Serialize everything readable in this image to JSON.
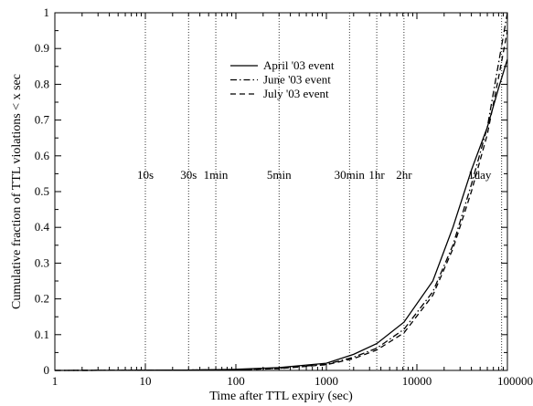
{
  "chart_data": {
    "type": "line",
    "title": "",
    "xlabel": "Time after TTL expiry (sec)",
    "ylabel": "Cumulative fraction of TTL violations < x sec",
    "xscale": "log",
    "xlim": [
      1,
      100000
    ],
    "ylim": [
      0,
      1
    ],
    "grid": false,
    "legend_position": "top-center",
    "x_ticks": [
      {
        "value": 1,
        "label": "1"
      },
      {
        "value": 10,
        "label": "10"
      },
      {
        "value": 100,
        "label": "100"
      },
      {
        "value": 1000,
        "label": "1000"
      },
      {
        "value": 10000,
        "label": "10000"
      },
      {
        "value": 100000,
        "label": "100000"
      }
    ],
    "y_ticks": [
      {
        "value": 0,
        "label": "0"
      },
      {
        "value": 0.1,
        "label": "0.1"
      },
      {
        "value": 0.2,
        "label": "0.2"
      },
      {
        "value": 0.3,
        "label": "0.3"
      },
      {
        "value": 0.4,
        "label": "0.4"
      },
      {
        "value": 0.5,
        "label": "0.5"
      },
      {
        "value": 0.6,
        "label": "0.6"
      },
      {
        "value": 0.7,
        "label": "0.7"
      },
      {
        "value": 0.8,
        "label": "0.8"
      },
      {
        "value": 0.9,
        "label": "0.9"
      },
      {
        "value": 1,
        "label": "1"
      }
    ],
    "markers": [
      {
        "x": 10,
        "label": "10s"
      },
      {
        "x": 30,
        "label": "30s"
      },
      {
        "x": 60,
        "label": "1min"
      },
      {
        "x": 300,
        "label": "5min"
      },
      {
        "x": 1800,
        "label": "30min"
      },
      {
        "x": 3600,
        "label": "1hr"
      },
      {
        "x": 7200,
        "label": "2hr"
      },
      {
        "x": 86400,
        "label": "1day"
      }
    ],
    "series": [
      {
        "name": "April '03 event",
        "style": "solid",
        "points": [
          [
            1,
            0
          ],
          [
            10,
            0.0005
          ],
          [
            30,
            0.001
          ],
          [
            100,
            0.003
          ],
          [
            300,
            0.008
          ],
          [
            1000,
            0.02
          ],
          [
            2000,
            0.045
          ],
          [
            3600,
            0.075
          ],
          [
            7200,
            0.135
          ],
          [
            15000,
            0.25
          ],
          [
            25000,
            0.4
          ],
          [
            40000,
            0.56
          ],
          [
            60000,
            0.68
          ],
          [
            80000,
            0.79
          ],
          [
            100000,
            0.87
          ]
        ]
      },
      {
        "name": "June '03 event",
        "style": "dash-dot",
        "points": [
          [
            1,
            0
          ],
          [
            10,
            0.0005
          ],
          [
            30,
            0.001
          ],
          [
            100,
            0.002
          ],
          [
            300,
            0.006
          ],
          [
            1000,
            0.017
          ],
          [
            2000,
            0.037
          ],
          [
            3600,
            0.062
          ],
          [
            7200,
            0.115
          ],
          [
            15000,
            0.22
          ],
          [
            25000,
            0.35
          ],
          [
            40000,
            0.52
          ],
          [
            60000,
            0.68
          ],
          [
            80000,
            0.86
          ],
          [
            100000,
            1.0
          ]
        ]
      },
      {
        "name": "July '03 event",
        "style": "dashed",
        "points": [
          [
            1,
            0
          ],
          [
            10,
            0.0005
          ],
          [
            30,
            0.001
          ],
          [
            100,
            0.002
          ],
          [
            300,
            0.005
          ],
          [
            1000,
            0.016
          ],
          [
            2000,
            0.033
          ],
          [
            3600,
            0.057
          ],
          [
            7200,
            0.105
          ],
          [
            15000,
            0.21
          ],
          [
            25000,
            0.34
          ],
          [
            40000,
            0.5
          ],
          [
            60000,
            0.66
          ],
          [
            80000,
            0.82
          ],
          [
            100000,
            0.95
          ]
        ]
      }
    ]
  }
}
